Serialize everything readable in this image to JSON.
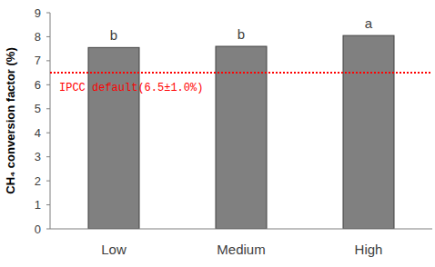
{
  "chart_data": {
    "type": "bar",
    "y_label": "CH₄ conversion factor (%)",
    "categories": [
      "Low",
      "Medium",
      "High"
    ],
    "values": [
      7.55,
      7.6,
      8.05
    ],
    "color": "#808080",
    "ylim": [
      0,
      9
    ],
    "yticks": [
      0,
      1,
      2,
      3,
      4,
      5,
      6,
      7,
      8,
      9
    ],
    "grid": false,
    "annotations": [
      {
        "text": "b",
        "category": "Low"
      },
      {
        "text": "b",
        "category": "Medium"
      },
      {
        "text": "a",
        "category": "High"
      }
    ],
    "reference_lines": [
      {
        "y": 6.5,
        "label": "IPCC default(6.5±1.0%)",
        "color": "#ff0000",
        "line_style": "dotted"
      }
    ]
  }
}
